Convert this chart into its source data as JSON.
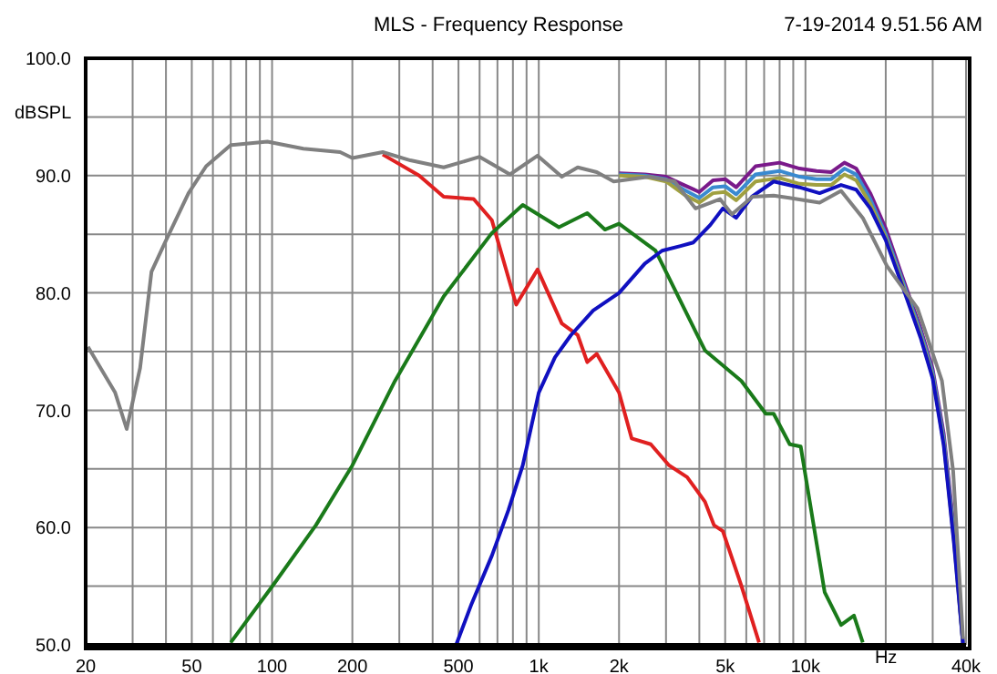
{
  "chart_data": {
    "type": "line",
    "title": "MLS - Frequency Response",
    "ylabel": "dBSPL",
    "xlabel": "Hz",
    "annotations": [
      "7-19-2014 9.51.56 AM"
    ],
    "log": "x",
    "grid": true,
    "marker": "none",
    "line_style": "solid",
    "xlim": [
      20,
      40000
    ],
    "xticks": [
      20,
      {
        "value": 30,
        "label": null
      },
      {
        "value": 40,
        "label": null
      },
      50,
      {
        "value": 60,
        "label": null
      },
      {
        "value": 70,
        "label": null
      },
      {
        "value": 80,
        "label": null
      },
      {
        "value": 90,
        "label": null
      },
      100,
      200,
      {
        "value": 300,
        "label": null
      },
      {
        "value": 400,
        "label": null
      },
      500,
      {
        "value": 600,
        "label": null
      },
      {
        "value": 700,
        "label": null
      },
      {
        "value": 800,
        "label": null
      },
      {
        "value": 900,
        "label": null
      },
      {
        "value": 1000,
        "label": "1k"
      },
      {
        "value": 2000,
        "label": "2k"
      },
      {
        "value": 3000,
        "label": null
      },
      {
        "value": 4000,
        "label": null
      },
      {
        "value": 5000,
        "label": "5k"
      },
      {
        "value": 6000,
        "label": null
      },
      {
        "value": 7000,
        "label": null
      },
      {
        "value": 8000,
        "label": null
      },
      {
        "value": 9000,
        "label": null
      },
      {
        "value": 10000,
        "label": "10k"
      },
      {
        "value": 20000,
        "label": null
      },
      {
        "value": 30000,
        "label": null
      },
      {
        "value": 40000,
        "label": "40k"
      }
    ],
    "ylim": [
      50,
      100
    ],
    "yticks": [
      {
        "value": 50,
        "label": "50.0"
      },
      {
        "value": 55,
        "label": null
      },
      {
        "value": 60,
        "label": "60.0"
      },
      {
        "value": 65,
        "label": null
      },
      {
        "value": 70,
        "label": "70.0"
      },
      {
        "value": 75,
        "label": null
      },
      {
        "value": 80,
        "label": "80.0"
      },
      {
        "value": 85,
        "label": null
      },
      {
        "value": 90,
        "label": "90.0"
      },
      {
        "value": 95,
        "label": null
      },
      {
        "value": 100,
        "label": "100.0"
      }
    ],
    "series": [
      {
        "color": "#808080",
        "x": [
          20.4,
          25.8,
          28.5,
          32,
          35.3,
          39.3,
          48.6,
          56.6,
          70,
          96,
          131,
          180,
          200,
          260,
          330,
          440,
          600,
          780,
          990,
          1220,
          1400,
          1650,
          1910,
          2600,
          3230,
          3870,
          4780,
          5300,
          6330,
          7600,
          8700,
          11300,
          13600,
          16400,
          20200,
          26300,
          32500,
          35800,
          39000
        ],
        "values": [
          75.4,
          71.5,
          68.4,
          73.6,
          81.8,
          84.1,
          88.5,
          90.8,
          92.6,
          92.9,
          92.3,
          92,
          91.5,
          92,
          91.3,
          90.7,
          91.6,
          90.1,
          91.7,
          89.9,
          90.7,
          90.3,
          89.5,
          89.9,
          89.5,
          87.2,
          88,
          86.7,
          88.2,
          88.3,
          88.1,
          87.7,
          88.7,
          86.4,
          82.3,
          78.7,
          72.5,
          64.8,
          50.5
        ]
      },
      {
        "color": "#7a1a8a",
        "x": [
          2000,
          2500,
          3000,
          3500,
          4000,
          4500,
          5000,
          5500,
          6500,
          8000,
          9500,
          11000,
          12500,
          14000,
          15500,
          17500,
          20000,
          23000,
          27000,
          30000,
          33000,
          36000,
          39000
        ],
        "values": [
          90.2,
          90.1,
          89.9,
          89.2,
          88.6,
          89.6,
          89.7,
          89,
          90.8,
          91.1,
          90.6,
          90.4,
          90.3,
          91.1,
          90.6,
          88.5,
          85.5,
          81.5,
          77,
          73.5,
          68,
          60,
          50
        ]
      },
      {
        "color": "#3a8ad0",
        "x": [
          2000,
          2500,
          3000,
          3500,
          4000,
          4500,
          5000,
          5500,
          6500,
          8000,
          9500,
          11000,
          12500,
          14000,
          15500,
          17500,
          20000,
          23000,
          27000,
          30000,
          33000,
          36000,
          39000
        ],
        "values": [
          90.1,
          90,
          89.7,
          88.8,
          88.1,
          89,
          89.1,
          88.4,
          90.1,
          90.4,
          89.9,
          89.7,
          89.7,
          90.6,
          90.1,
          88,
          85,
          81.2,
          76.7,
          73.2,
          67.6,
          59.5,
          50
        ]
      },
      {
        "color": "#a0a040",
        "x": [
          2000,
          2500,
          3000,
          3500,
          4000,
          4500,
          5000,
          5500,
          6500,
          8000,
          9500,
          11000,
          12500,
          14000,
          15500,
          17500,
          20000,
          23000,
          27000,
          30000,
          33000,
          36000,
          39000
        ],
        "values": [
          90,
          89.9,
          89.5,
          88.4,
          87.7,
          88.5,
          88.6,
          87.9,
          89.5,
          89.8,
          89.3,
          89.2,
          89.2,
          90.1,
          89.6,
          87.6,
          84.7,
          80.9,
          76.4,
          72.9,
          67.2,
          59,
          50
        ]
      },
      {
        "color": "#e02020",
        "x": [
          260,
          356,
          440,
          570,
          667,
          823,
          990,
          1220,
          1400,
          1520,
          1650,
          2000,
          2230,
          2630,
          3080,
          3600,
          4200,
          4540,
          4900,
          5740,
          6700
        ],
        "values": [
          91.8,
          90,
          88.2,
          88,
          86.2,
          79,
          82,
          77.4,
          76.4,
          74.1,
          74.8,
          71.5,
          67.6,
          67.1,
          65.3,
          64.3,
          62.2,
          60.2,
          59.7,
          55.1,
          50.2
        ]
      },
      {
        "color": "#1a7a1a",
        "x": [
          70,
          101,
          146,
          200,
          289,
          440,
          667,
          871,
          1190,
          1520,
          1770,
          2000,
          2740,
          4200,
          5750,
          7100,
          7600,
          8730,
          9600,
          11800,
          13600,
          15200,
          16400
        ],
        "values": [
          50.2,
          55.1,
          60.2,
          65.3,
          72.5,
          79.7,
          85.1,
          87.5,
          85.6,
          86.8,
          85.4,
          85.9,
          83.6,
          75.1,
          72.5,
          69.7,
          69.7,
          67.1,
          66.9,
          54.5,
          51.7,
          52.5,
          50.2
        ]
      },
      {
        "color": "#1010c0",
        "x": [
          490,
          560,
          667,
          770,
          871,
          1000,
          1150,
          1320,
          1600,
          2000,
          2500,
          2900,
          3400,
          3800,
          4400,
          4900,
          5500,
          6300,
          7600,
          9500,
          11300,
          13600,
          15500,
          17500,
          20000,
          23000,
          27000,
          30000,
          33000,
          36000,
          39000
        ],
        "values": [
          50,
          53.5,
          57.6,
          61.5,
          65.3,
          71.5,
          74.5,
          76.4,
          78.5,
          80,
          82.5,
          83.6,
          84,
          84.3,
          85.8,
          87.2,
          86.4,
          88.2,
          89.5,
          89,
          88.5,
          89.2,
          88.8,
          87.2,
          84.5,
          80.7,
          76.2,
          72.7,
          67,
          58.8,
          50
        ]
      }
    ]
  }
}
